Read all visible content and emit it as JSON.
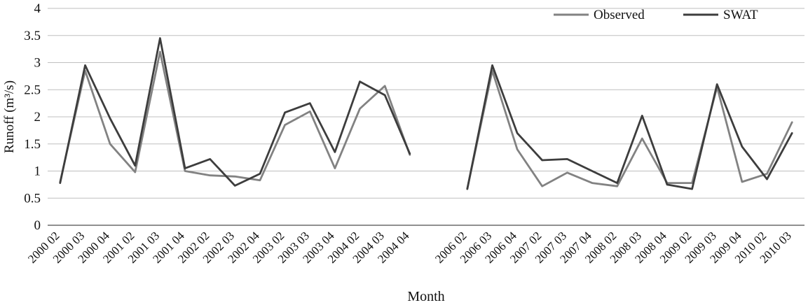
{
  "figure": {
    "description": "Line chart comparing Observed and SWAT simulated monthly runoff"
  },
  "chart_data": {
    "type": "line",
    "title": "",
    "xlabel": "Month",
    "ylabel": "Runoff (m³/s)",
    "ylim": [
      0,
      4
    ],
    "ytick_step": 0.5,
    "ytick_labels": [
      "0",
      "0.5",
      "1",
      "1.5",
      "2",
      "2.5",
      "3",
      "3.5",
      "4"
    ],
    "grid": true,
    "legend_position": "top-right",
    "axis_color": "#6b6b6b",
    "grid_color": "#bfbfbf",
    "series_meta": [
      {
        "name": "Observed",
        "color": "#828282"
      },
      {
        "name": "SWAT",
        "color": "#3d3d3d"
      }
    ],
    "segments": [
      {
        "categories": [
          "2000 02",
          "2000 03",
          "2000 04",
          "2001 02",
          "2001 03",
          "2001 04",
          "2002 02",
          "2002 03",
          "2002 04",
          "2003 02",
          "2003 03",
          "2003 04",
          "2004 02",
          "2004 03",
          "2004 04"
        ],
        "series": [
          {
            "name": "Observed",
            "values": [
              0.8,
              2.85,
              1.5,
              0.98,
              3.2,
              1.0,
              0.92,
              0.9,
              0.83,
              1.85,
              2.1,
              1.05,
              2.15,
              2.57,
              1.3
            ]
          },
          {
            "name": "SWAT",
            "values": [
              0.78,
              2.95,
              1.97,
              1.1,
              3.45,
              1.05,
              1.22,
              0.73,
              0.95,
              2.08,
              2.25,
              1.35,
              2.65,
              2.4,
              1.32
            ]
          }
        ]
      },
      {
        "categories": [
          "2006 02",
          "2006 03",
          "2006 04",
          "2007 02",
          "2007 03",
          "2007 04",
          "2008 02",
          "2008 03",
          "2008 04",
          "2009 02",
          "2009 03",
          "2009 04",
          "2010 02",
          "2010 03"
        ],
        "series": [
          {
            "name": "Observed",
            "values": [
              0.67,
              2.85,
              1.4,
              0.72,
              0.97,
              0.78,
              0.72,
              1.6,
              0.78,
              0.78,
              2.55,
              0.8,
              0.95,
              1.9
            ]
          },
          {
            "name": "SWAT",
            "values": [
              0.67,
              2.95,
              1.7,
              1.2,
              1.22,
              1.0,
              0.78,
              2.02,
              0.75,
              0.67,
              2.6,
              1.45,
              0.85,
              1.7
            ]
          }
        ]
      }
    ]
  }
}
